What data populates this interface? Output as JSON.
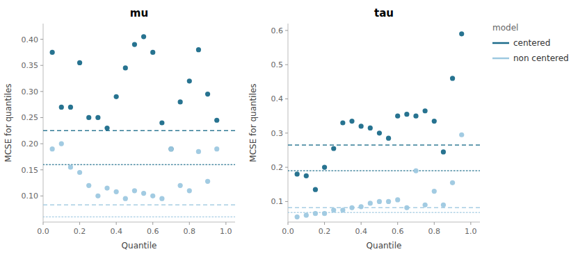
{
  "chart_data": [
    {
      "type": "scatter",
      "title": "mu",
      "x_label": "Quantile",
      "y_label": "MCSE for quantiles",
      "xlim": [
        0.0,
        1.05
      ],
      "xticks": [
        {
          "value": 0,
          "label": "0.0"
        },
        0.2,
        0.4,
        0.6,
        0.8,
        {
          "value": 1,
          "label": "1.0"
        }
      ],
      "ylim": [
        0.05,
        0.43
      ],
      "yticks": [
        {
          "value": 0.1,
          "label": "0.10"
        },
        0.15,
        {
          "value": 0.2,
          "label": "0.20"
        },
        0.25,
        {
          "value": 0.3,
          "label": "0.30"
        },
        0.35,
        {
          "value": 0.4,
          "label": "0.40"
        }
      ],
      "grid": false,
      "series": [
        {
          "name": "centered",
          "color": "#1B6B8A",
          "x": [
            0.05,
            0.1,
            0.15,
            0.2,
            0.25,
            0.3,
            0.35,
            0.4,
            0.45,
            0.5,
            0.55,
            0.6,
            0.65,
            0.7,
            0.75,
            0.8,
            0.85,
            0.9,
            0.95
          ],
          "values": [
            0.375,
            0.27,
            0.27,
            0.355,
            0.25,
            0.25,
            0.23,
            0.29,
            0.345,
            0.39,
            0.405,
            0.375,
            0.24,
            0.19,
            0.28,
            0.32,
            0.38,
            0.295,
            0.245
          ],
          "reference_lines": [
            {
              "value": 0.225,
              "line_style": "dashed"
            },
            {
              "value": 0.16,
              "line_style": "dotted"
            }
          ]
        },
        {
          "name": "non centered",
          "color": "#9DC8E0",
          "x": [
            0.05,
            0.1,
            0.15,
            0.2,
            0.25,
            0.3,
            0.35,
            0.4,
            0.45,
            0.5,
            0.55,
            0.6,
            0.65,
            0.7,
            0.75,
            0.8,
            0.85,
            0.9,
            0.95
          ],
          "values": [
            0.19,
            0.2,
            0.155,
            0.145,
            0.12,
            0.1,
            0.115,
            0.108,
            0.095,
            0.11,
            0.105,
            0.1,
            0.095,
            0.19,
            0.12,
            0.11,
            0.185,
            0.128,
            0.19
          ],
          "reference_lines": [
            {
              "value": 0.083,
              "line_style": "dashed"
            },
            {
              "value": 0.06,
              "line_style": "dotted"
            }
          ]
        }
      ]
    },
    {
      "type": "scatter",
      "title": "tau",
      "x_label": "Quantile",
      "y_label": "MCSE for quantiles",
      "xlim": [
        0.0,
        1.05
      ],
      "xticks": [
        {
          "value": 0,
          "label": "0.0"
        },
        0.2,
        0.4,
        0.6,
        0.8,
        {
          "value": 1,
          "label": "1.0"
        }
      ],
      "ylim": [
        0.04,
        0.62
      ],
      "yticks": [
        0.1,
        0.2,
        0.3,
        0.4,
        0.5,
        0.6
      ],
      "grid": false,
      "legend": "right",
      "legend_title": "model",
      "series": [
        {
          "name": "centered",
          "color": "#1B6B8A",
          "x": [
            0.05,
            0.1,
            0.15,
            0.2,
            0.25,
            0.3,
            0.35,
            0.4,
            0.45,
            0.5,
            0.55,
            0.6,
            0.65,
            0.7,
            0.75,
            0.8,
            0.85,
            0.9,
            0.95
          ],
          "values": [
            0.18,
            0.175,
            0.135,
            0.2,
            0.255,
            0.33,
            0.335,
            0.32,
            0.315,
            0.3,
            0.285,
            0.35,
            0.355,
            0.35,
            0.365,
            0.335,
            0.245,
            0.46,
            0.59
          ],
          "reference_lines": [
            {
              "value": 0.265,
              "line_style": "dashed"
            },
            {
              "value": 0.19,
              "line_style": "dotted"
            }
          ]
        },
        {
          "name": "non centered",
          "color": "#9DC8E0",
          "x": [
            0.05,
            0.1,
            0.15,
            0.2,
            0.25,
            0.3,
            0.35,
            0.4,
            0.45,
            0.5,
            0.55,
            0.6,
            0.65,
            0.7,
            0.75,
            0.8,
            0.85,
            0.9,
            0.95
          ],
          "values": [
            0.055,
            0.06,
            0.065,
            0.065,
            0.075,
            0.075,
            0.082,
            0.085,
            0.095,
            0.1,
            0.1,
            0.105,
            0.082,
            0.19,
            0.09,
            0.13,
            0.09,
            0.155,
            0.295
          ],
          "reference_lines": [
            {
              "value": 0.082,
              "line_style": "dashed"
            },
            {
              "value": 0.068,
              "line_style": "dotted"
            }
          ]
        }
      ]
    }
  ]
}
